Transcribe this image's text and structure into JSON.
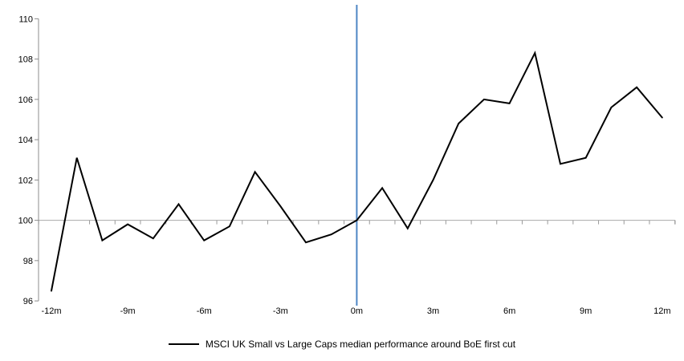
{
  "chart_data": {
    "type": "line",
    "title": "",
    "x": [
      -12,
      -11,
      -10,
      -9,
      -8,
      -7,
      -6,
      -5,
      -4,
      -3,
      -2,
      -1,
      0,
      1,
      2,
      3,
      4,
      5,
      6,
      7,
      8,
      9,
      10,
      11,
      12
    ],
    "series": [
      {
        "name": "MSCI UK Small vs Large Caps median performance around BoE first cut",
        "values": [
          96.5,
          103.1,
          99.0,
          99.8,
          99.1,
          100.8,
          99.0,
          99.7,
          102.4,
          100.7,
          98.9,
          99.3,
          100.0,
          101.6,
          99.6,
          102.0,
          104.8,
          106.0,
          105.8,
          108.3,
          102.8,
          103.1,
          105.6,
          106.6,
          105.1
        ],
        "color": "#000000"
      }
    ],
    "xlabel": "",
    "ylabel": "",
    "ylim": [
      96,
      110
    ],
    "y_ticks": [
      {
        "value": 96,
        "label": "96"
      },
      {
        "value": 98,
        "label": "98"
      },
      {
        "value": 100,
        "label": "100"
      },
      {
        "value": 102,
        "label": "102"
      },
      {
        "value": 104,
        "label": "104"
      },
      {
        "value": 106,
        "label": "106"
      },
      {
        "value": 108,
        "label": "108"
      },
      {
        "value": 110,
        "label": "110"
      }
    ],
    "x_ticks": [
      {
        "value": -12,
        "label": "-12m"
      },
      {
        "value": -9,
        "label": "-9m"
      },
      {
        "value": -6,
        "label": "-6m"
      },
      {
        "value": -3,
        "label": "-3m"
      },
      {
        "value": 0,
        "label": "0m"
      },
      {
        "value": 3,
        "label": "3m"
      },
      {
        "value": 6,
        "label": "6m"
      },
      {
        "value": 9,
        "label": "9m"
      },
      {
        "value": 12,
        "label": "12m"
      }
    ],
    "baseline": {
      "value": 100
    },
    "event_line": {
      "x": 0
    },
    "grid": "single-horizontal-at-100",
    "legend_position": "bottom"
  },
  "legend": {
    "label": "MSCI UK Small vs Large Caps median performance around BoE first cut"
  },
  "colors": {
    "series_line": "#000000",
    "event_line": "#4e86c4",
    "axis": "#8c8c8c",
    "gridline": "#a9a9a9",
    "tick": "#999999",
    "text": "#000000"
  }
}
